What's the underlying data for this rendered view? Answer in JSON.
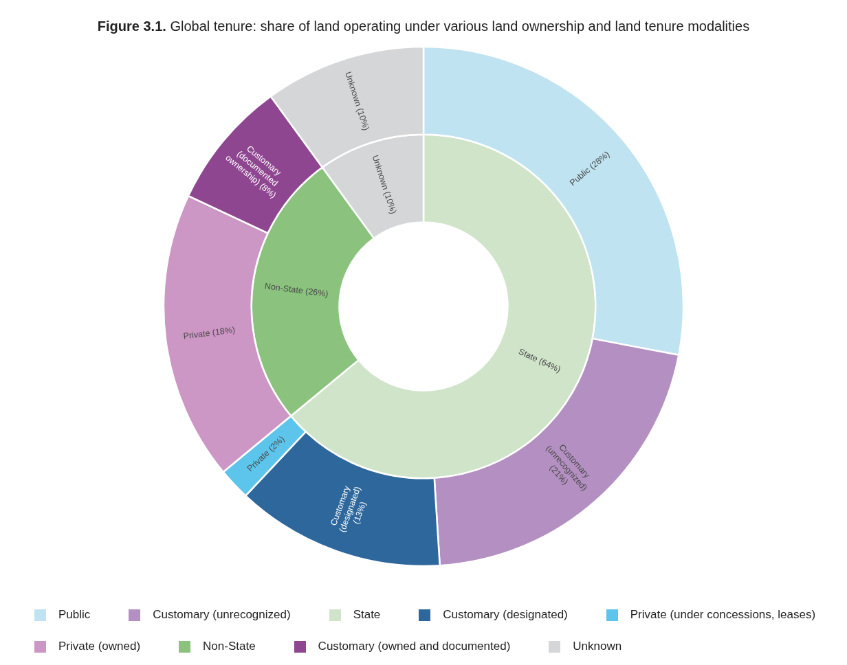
{
  "chart_data": {
    "type": "donut",
    "title": "Figure 3.1. Global tenure: share of land operating under various land ownership and land tenure modalities",
    "categories": [
      "Public",
      "Customary (unrecognized)",
      "State",
      "Customary (designated)",
      "Private (under concessions, leases)",
      "Private (owned)",
      "Non-State",
      "Customary (owned and documented)",
      "Unknown"
    ],
    "series": [
      {
        "values": [
          28,
          21,
          null,
          13,
          2,
          18,
          null,
          8,
          10
        ],
        "colors": [
          "#bfe3f1",
          "#b48fc2",
          null,
          "#2d679c",
          "#5dc4eb",
          "#cc96c5",
          null,
          "#8f4690",
          "#d5d6d8"
        ],
        "value_labels": [
          "Public (28%)",
          "Customary (unrecognized) (21%)",
          null,
          "Customary (designated) (13%)",
          "Private (2%)",
          "Private (18%)",
          null,
          "Customary (documented ownership) (8%)",
          "Unknown (10%)"
        ]
      },
      {
        "values": [
          null,
          null,
          64,
          null,
          null,
          null,
          26,
          null,
          10
        ],
        "colors": [
          null,
          null,
          "#d0e4ca",
          null,
          null,
          null,
          "#8bc37e",
          null,
          "#d5d6d8"
        ],
        "value_labels": [
          null,
          null,
          "State (64%)",
          null,
          null,
          null,
          "Non-State (26%)",
          null,
          "Unknown (10%)"
        ]
      }
    ],
    "legend": "bottom"
  }
}
